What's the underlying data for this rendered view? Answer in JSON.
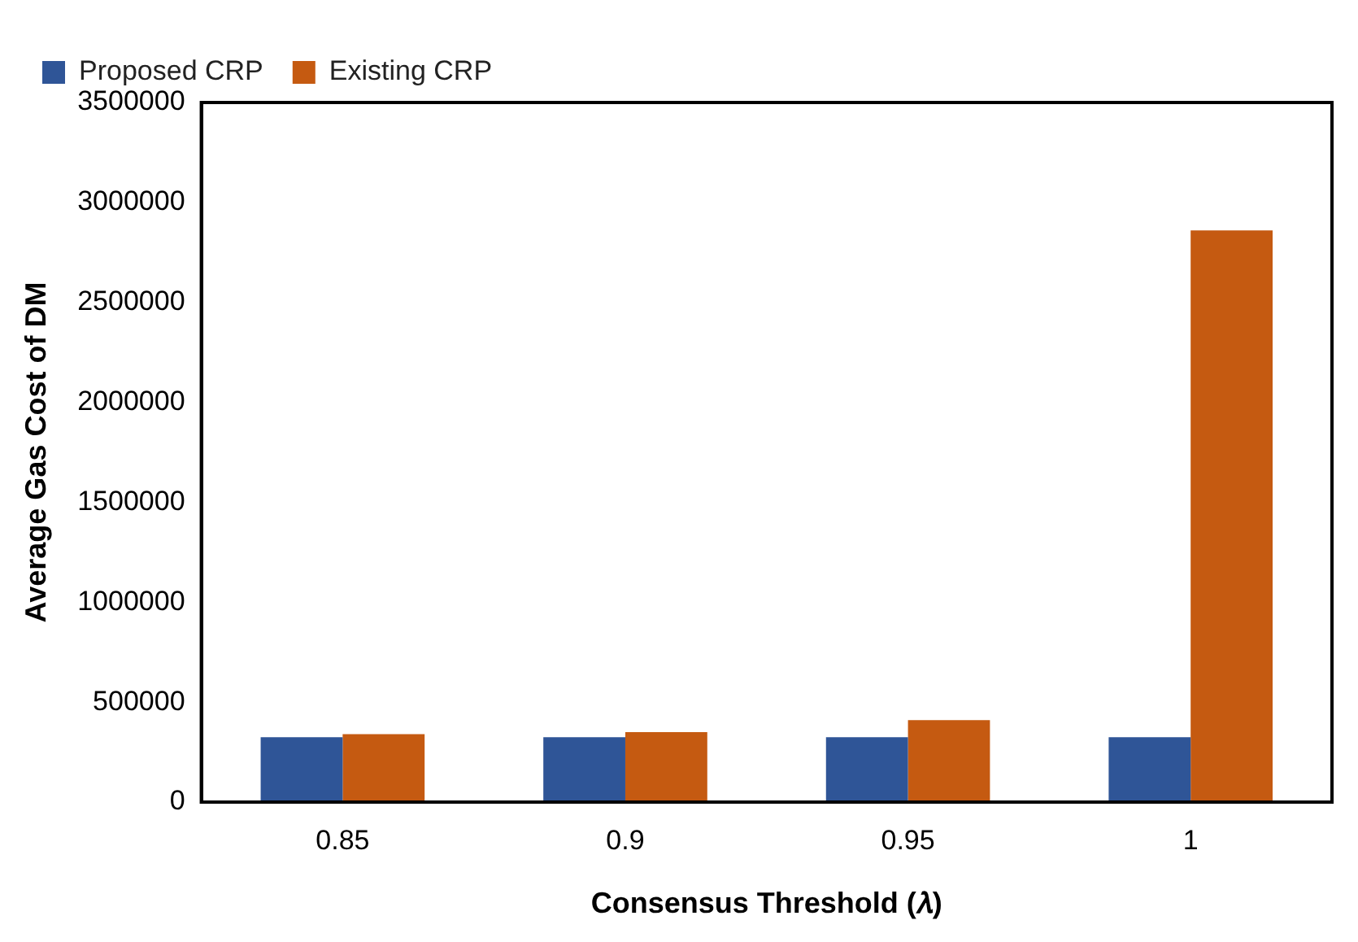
{
  "chart_data": {
    "type": "bar",
    "xlabel": "Consensus Threshold (𝜆)",
    "ylabel": "Average Gas Cost of DM",
    "categories": [
      "0.85",
      "0.9",
      "0.95",
      "1"
    ],
    "series": [
      {
        "name": "Proposed CRP",
        "color": "#2f5597",
        "values": [
          325000,
          325000,
          325000,
          325000
        ]
      },
      {
        "name": "Existing CRP",
        "color": "#c55a11",
        "values": [
          340000,
          350000,
          410000,
          2860000
        ]
      }
    ],
    "ylim": [
      0,
      3500000
    ],
    "yticks": [
      0,
      500000,
      1000000,
      1500000,
      2000000,
      2500000,
      3000000,
      3500000
    ],
    "grid": false,
    "legend": "top left"
  }
}
